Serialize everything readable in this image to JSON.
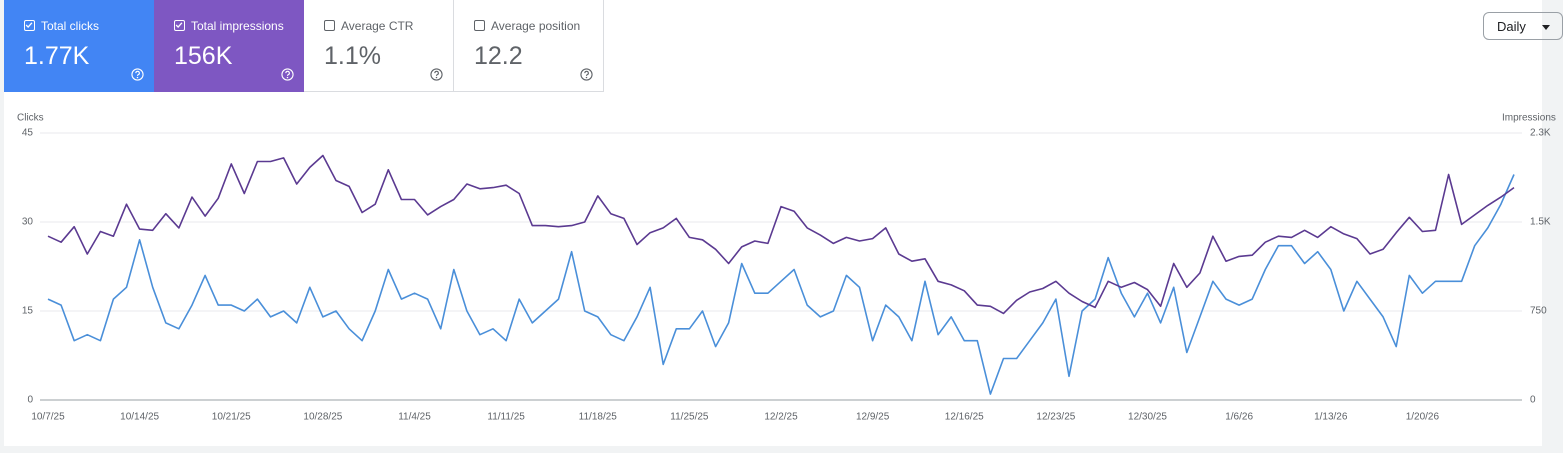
{
  "metrics": [
    {
      "label": "Total clicks",
      "value": "1.77K",
      "checked": true
    },
    {
      "label": "Total impressions",
      "value": "156K",
      "checked": true
    },
    {
      "label": "Average CTR",
      "value": "1.1%",
      "checked": false
    },
    {
      "label": "Average position",
      "value": "12.2",
      "checked": false
    }
  ],
  "range_selector": "Daily",
  "chart_data": {
    "type": "line",
    "categories": [
      "10/7/25",
      null,
      null,
      null,
      null,
      null,
      null,
      "10/14/25",
      null,
      null,
      null,
      null,
      null,
      null,
      "10/21/25",
      null,
      null,
      null,
      null,
      null,
      null,
      "10/28/25",
      null,
      null,
      null,
      null,
      null,
      null,
      "11/4/25",
      null,
      null,
      null,
      null,
      null,
      null,
      "11/11/25",
      null,
      null,
      null,
      null,
      null,
      null,
      "11/18/25",
      null,
      null,
      null,
      null,
      null,
      null,
      "11/25/25",
      null,
      null,
      null,
      null,
      null,
      null,
      "12/2/25",
      null,
      null,
      null,
      null,
      null,
      null,
      "12/9/25",
      null,
      null,
      null,
      null,
      null,
      null,
      "12/16/25",
      null,
      null,
      null,
      null,
      null,
      null,
      "12/23/25",
      null,
      null,
      null,
      null,
      null,
      null,
      "12/30/25",
      null,
      null,
      null,
      null,
      null,
      null,
      "1/6/26",
      null,
      null,
      null,
      null,
      null,
      null,
      "1/13/26",
      null,
      null,
      null,
      null,
      null,
      null,
      "1/20/26",
      null,
      null,
      null,
      null,
      null,
      null,
      null
    ],
    "ylabel": "Clicks",
    "y2label": "Impressions",
    "ylim": [
      0,
      45
    ],
    "yticks": [
      0,
      15,
      30,
      45
    ],
    "y2lim": [
      0,
      2250
    ],
    "y2ticks": [
      0,
      750,
      {
        "value": 1500,
        "label": "1.5K"
      },
      {
        "value": 2250,
        "label": "2.3K"
      }
    ],
    "grid": true,
    "series": [
      {
        "name": "Clicks",
        "color": "#4a8fd9",
        "values": [
          17,
          16,
          10,
          11,
          10,
          17,
          19,
          27,
          19,
          13,
          12,
          16,
          21,
          16,
          16,
          15,
          17,
          14,
          15,
          13,
          19,
          14,
          15,
          12,
          10,
          15,
          22,
          17,
          18,
          17,
          12,
          22,
          15,
          11,
          12,
          10,
          17,
          13,
          15,
          17,
          25,
          15,
          14,
          11,
          10,
          14,
          19,
          6,
          12,
          12,
          15,
          9,
          13,
          23,
          18,
          18,
          20,
          22,
          16,
          14,
          15,
          21,
          19,
          10,
          16,
          14,
          10,
          20,
          11,
          14,
          10,
          10,
          1,
          7,
          7,
          10,
          13,
          17,
          4,
          15,
          17,
          24,
          18,
          14,
          18,
          13,
          19,
          8,
          14,
          20,
          17,
          16,
          17,
          22,
          26,
          26,
          23,
          25,
          22,
          15,
          20,
          17,
          14,
          9,
          21,
          18,
          20,
          20,
          20,
          26,
          29,
          33,
          38
        ]
      },
      {
        "name": "Impressions",
        "color": "#5b3a91",
        "axis": "y2",
        "values": [
          1380,
          1330,
          1460,
          1230,
          1420,
          1380,
          1650,
          1440,
          1430,
          1570,
          1450,
          1710,
          1550,
          1700,
          1990,
          1740,
          2010,
          2010,
          2040,
          1820,
          1960,
          2060,
          1850,
          1800,
          1580,
          1650,
          1940,
          1690,
          1690,
          1560,
          1630,
          1690,
          1820,
          1780,
          1790,
          1810,
          1740,
          1470,
          1470,
          1460,
          1470,
          1500,
          1720,
          1570,
          1530,
          1310,
          1410,
          1450,
          1530,
          1370,
          1350,
          1270,
          1150,
          1290,
          1340,
          1320,
          1630,
          1590,
          1450,
          1390,
          1320,
          1370,
          1340,
          1360,
          1450,
          1230,
          1170,
          1190,
          1000,
          970,
          920,
          800,
          790,
          730,
          840,
          910,
          940,
          1000,
          900,
          830,
          780,
          1000,
          950,
          990,
          930,
          790,
          1150,
          950,
          1070,
          1380,
          1170,
          1210,
          1220,
          1330,
          1380,
          1370,
          1430,
          1370,
          1460,
          1400,
          1360,
          1230,
          1270,
          1410,
          1540,
          1420,
          1430,
          1900,
          1480,
          1560,
          1640,
          1710,
          1790
        ]
      }
    ]
  }
}
